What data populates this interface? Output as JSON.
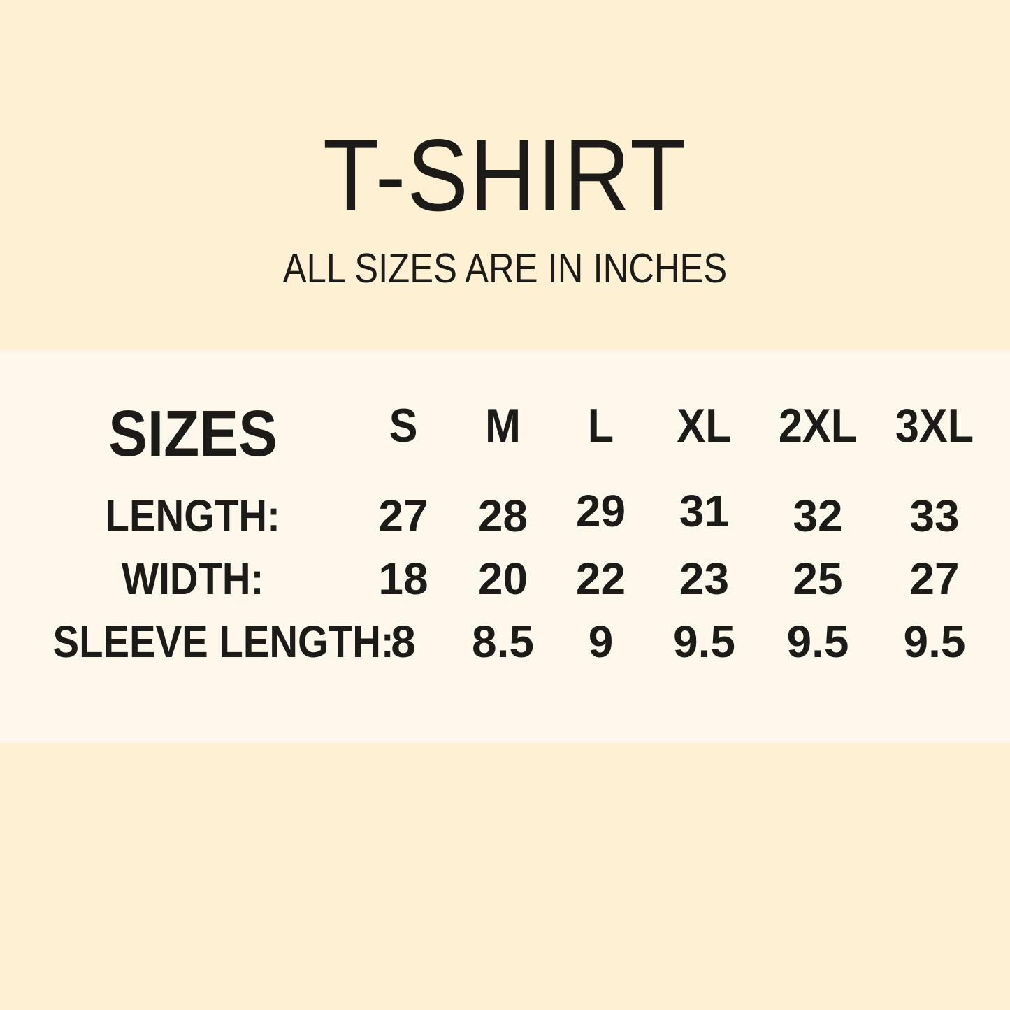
{
  "header": {
    "title": "T-SHIRT",
    "subtitle": "ALL SIZES ARE IN INCHES"
  },
  "chart_data": {
    "type": "table",
    "title": "T-SHIRT",
    "subtitle": "ALL SIZES ARE IN INCHES",
    "units": "inches",
    "corner_label": "SIZES",
    "columns": [
      "S",
      "M",
      "L",
      "XL",
      "2XL",
      "3XL"
    ],
    "rows": [
      {
        "label": "LENGTH:",
        "values": [
          "27",
          "28",
          "29",
          "31",
          "32",
          "33"
        ]
      },
      {
        "label": "WIDTH:",
        "values": [
          "18",
          "20",
          "22",
          "23",
          "25",
          "27"
        ]
      },
      {
        "label": "SLEEVE LENGTH:",
        "values": [
          "8",
          "8.5",
          "9",
          "9.5",
          "9.5",
          "9.5"
        ]
      }
    ]
  },
  "colors": {
    "background": "#FDF0D3",
    "band": "#FEF7EC",
    "text": "#1D1B17"
  }
}
